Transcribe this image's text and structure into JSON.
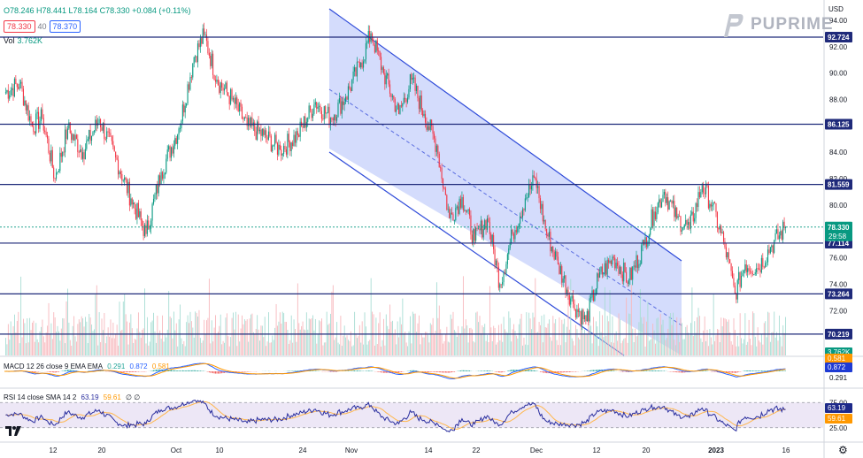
{
  "symbol_header": {
    "ohlc": "O78.246 H78.441 L78.164 C78.330 +0.084 (+0.11%)",
    "bid": "78.330",
    "spread": "40",
    "ask": "78.370",
    "vol_label": "Vol",
    "vol_value": "3.762K"
  },
  "brand": {
    "name": "PUPRIME"
  },
  "currency": "USD",
  "colors": {
    "up": "#089981",
    "down": "#f23645",
    "channel_fill": "#c5d0fb",
    "channel_line": "#2f4bd9",
    "hline": "#1f2a7a",
    "macd": "#2962ff",
    "signal": "#ff9800",
    "rsi": "#2a2e9e",
    "rsi_sma": "#ffb74d",
    "rsi_band": "#ede7f6"
  },
  "macd_legend": {
    "label": "MACD 12 26 close 9 EMA EMA",
    "hist": "0.291",
    "macd": "0.872",
    "signal": "0.581"
  },
  "rsi_legend": {
    "label": "RSI 14 close SMA 14 2",
    "rsi": "63.19",
    "sma": "59.61",
    "extra": "∅ ∅"
  },
  "chart_data": {
    "type": "candlestick",
    "y_axis": {
      "min": 68.6,
      "max": 94.6,
      "ticks": [
        72.0,
        74.0,
        76.0,
        78.0,
        80.0,
        82.0,
        84.0,
        86.0,
        88.0,
        90.0,
        92.0,
        94.0
      ]
    },
    "x_axis": {
      "labels": [
        "12",
        "20",
        "Oct",
        "10",
        "24",
        "Nov",
        "14",
        "22",
        "Dec",
        "12",
        "20",
        "2023",
        "16"
      ]
    },
    "horizontal_levels": [
      {
        "value": 92.724,
        "label": "92.724"
      },
      {
        "value": 86.125,
        "label": "86.125"
      },
      {
        "value": 81.559,
        "label": "81.559"
      },
      {
        "value": 77.114,
        "label": "77.114"
      },
      {
        "value": 73.264,
        "label": "73.264"
      },
      {
        "value": 70.219,
        "label": "70.219"
      }
    ],
    "last_price": {
      "value": 78.33,
      "label": "78.330",
      "countdown": "29:58"
    },
    "price_anchors": [
      [
        0,
        88.5
      ],
      [
        12,
        89.2
      ],
      [
        22,
        86.0
      ],
      [
        30,
        86.6
      ],
      [
        40,
        82.0
      ],
      [
        50,
        85.8
      ],
      [
        62,
        84.0
      ],
      [
        75,
        86.5
      ],
      [
        88,
        83.6
      ],
      [
        100,
        80.5
      ],
      [
        112,
        77.8
      ],
      [
        124,
        82.5
      ],
      [
        138,
        85.8
      ],
      [
        150,
        91.2
      ],
      [
        158,
        92.9
      ],
      [
        168,
        89.5
      ],
      [
        180,
        88.0
      ],
      [
        192,
        86.0
      ],
      [
        205,
        85.3
      ],
      [
        218,
        84.2
      ],
      [
        232,
        85.3
      ],
      [
        246,
        87.8
      ],
      [
        258,
        86.6
      ],
      [
        270,
        88.2
      ],
      [
        282,
        90.8
      ],
      [
        290,
        93.0
      ],
      [
        300,
        90.0
      ],
      [
        312,
        86.9
      ],
      [
        322,
        89.5
      ],
      [
        332,
        86.9
      ],
      [
        342,
        84.5
      ],
      [
        352,
        79.0
      ],
      [
        362,
        80.6
      ],
      [
        372,
        77.3
      ],
      [
        382,
        79.0
      ],
      [
        392,
        74.0
      ],
      [
        402,
        77.8
      ],
      [
        412,
        80.5
      ],
      [
        420,
        82.0
      ],
      [
        428,
        78.2
      ],
      [
        438,
        75.5
      ],
      [
        450,
        72.5
      ],
      [
        460,
        71.2
      ],
      [
        470,
        74.5
      ],
      [
        482,
        76.0
      ],
      [
        494,
        74.3
      ],
      [
        506,
        77.0
      ],
      [
        514,
        79.5
      ],
      [
        522,
        81.0
      ],
      [
        532,
        79.0
      ],
      [
        542,
        78.2
      ],
      [
        552,
        81.5
      ],
      [
        560,
        80.0
      ],
      [
        570,
        76.8
      ],
      [
        578,
        73.3
      ],
      [
        586,
        75.5
      ],
      [
        596,
        75.2
      ],
      [
        606,
        76.8
      ],
      [
        618,
        78.33
      ]
    ],
    "volume": {
      "last": "3.762K"
    },
    "macd": {
      "hist": 0.291,
      "macd": 0.872,
      "signal": 0.581
    },
    "rsi": {
      "value": 63.19,
      "sma": 59.61,
      "ticks": [
        25.0,
        75.0
      ]
    }
  }
}
